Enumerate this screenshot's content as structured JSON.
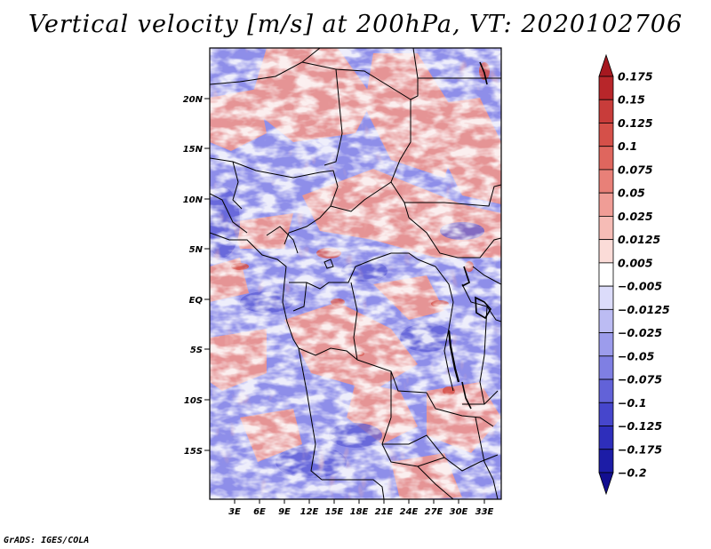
{
  "title": "Vertical velocity [m/s] at 200hPa, VT: 2020102706",
  "credit": "GrADS: IGES/COLA",
  "map": {
    "variable": "Vertical velocity",
    "units": "m/s",
    "level": "200hPa",
    "valid_time": "2020102706",
    "lat_labels": [
      "20N",
      "15N",
      "10N",
      "5N",
      "EQ",
      "5S",
      "10S",
      "15S"
    ],
    "lon_labels": [
      "3E",
      "6E",
      "9E",
      "12E",
      "15E",
      "18E",
      "21E",
      "24E",
      "27E",
      "30E",
      "33E"
    ]
  },
  "colorbar": {
    "labels": [
      "0.175",
      "0.15",
      "0.125",
      "0.1",
      "0.075",
      "0.05",
      "0.025",
      "0.0125",
      "0.005",
      "−0.005",
      "−0.0125",
      "−0.025",
      "−0.05",
      "−0.075",
      "−0.1",
      "−0.125",
      "−0.175",
      "−0.2"
    ],
    "colors": [
      "#a61820",
      "#b8262a",
      "#c83c3a",
      "#d55049",
      "#df665e",
      "#e88078",
      "#f09d96",
      "#f6bcb6",
      "#fbdcd8",
      "#ffffff",
      "#dcdcfa",
      "#bcbcf3",
      "#9c9cec",
      "#7f7fe3",
      "#6262d8",
      "#4646cc",
      "#2e2ebb",
      "#1c1ca6",
      "#120e90"
    ]
  }
}
